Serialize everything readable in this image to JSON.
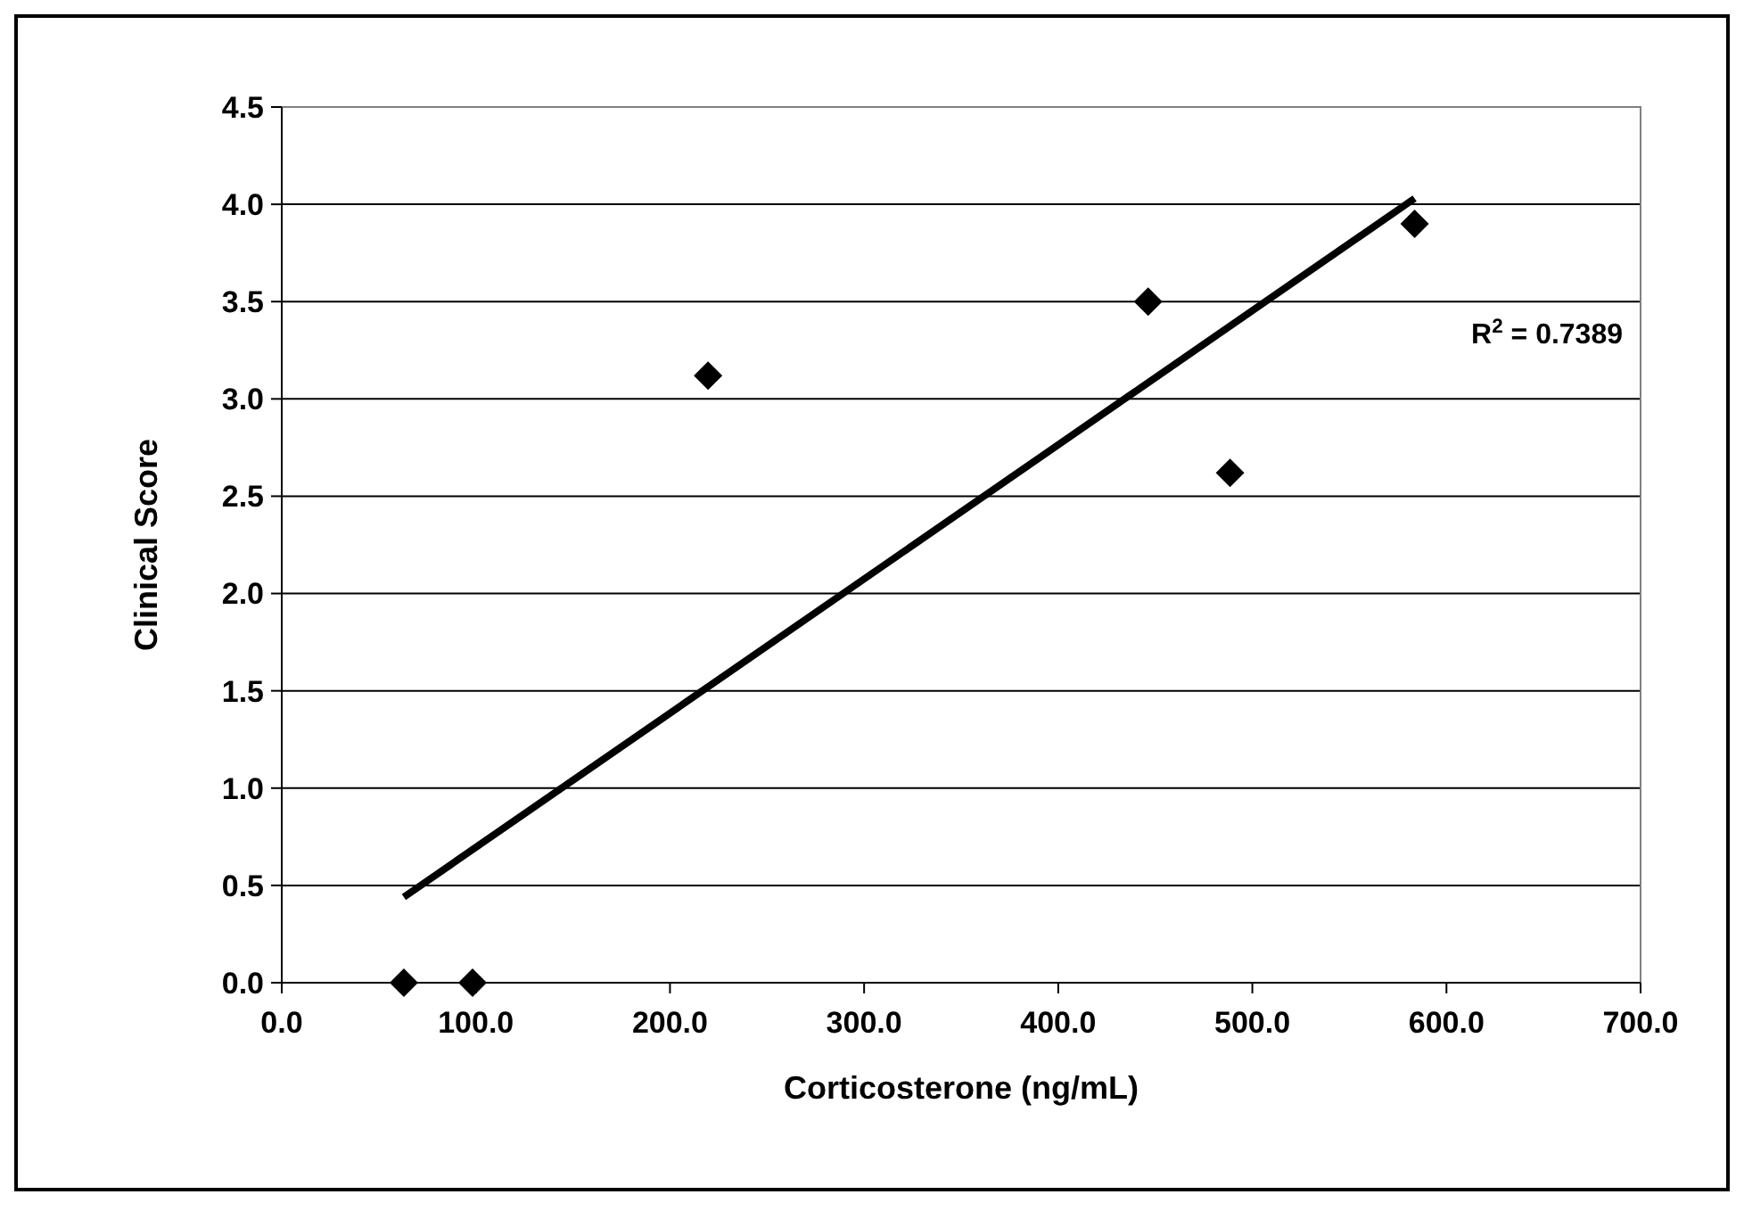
{
  "chart_data": {
    "type": "scatter",
    "xlabel": "Corticosterone (ng/mL)",
    "ylabel": "Clinical Score",
    "xlim": [
      0,
      700
    ],
    "xticks": [
      {
        "value": 0,
        "label": "0.0"
      },
      {
        "value": 100,
        "label": "100.0"
      },
      {
        "value": 200,
        "label": "200.0"
      },
      {
        "value": 300,
        "label": "300.0"
      },
      {
        "value": 400,
        "label": "400.0"
      },
      {
        "value": 500,
        "label": "500.0"
      },
      {
        "value": 600,
        "label": "600.0"
      },
      {
        "value": 700,
        "label": "700.0"
      }
    ],
    "ylim": [
      0,
      4.5
    ],
    "yticks": [
      {
        "value": 0,
        "label": "0.0"
      },
      {
        "value": 0.5,
        "label": "0.5"
      },
      {
        "value": 1,
        "label": "1.0"
      },
      {
        "value": 1.5,
        "label": "1.5"
      },
      {
        "value": 2,
        "label": "2.0"
      },
      {
        "value": 2.5,
        "label": "2.5"
      },
      {
        "value": 3,
        "label": "3.0"
      },
      {
        "value": 3.5,
        "label": "3.5"
      },
      {
        "value": 4,
        "label": "4.0"
      },
      {
        "value": 4.5,
        "label": "4.5"
      }
    ],
    "grid": "y",
    "series": [
      {
        "color": "#000000",
        "marker": "diamond",
        "x": [
          62.9,
          98.3,
          219.6,
          446.3,
          488.5,
          583.6
        ],
        "values": [
          0,
          0,
          3.12,
          3.5,
          2.62,
          3.9
        ]
      },
      {
        "type": "line",
        "color": "#000000",
        "x": [
          62.9,
          583.6
        ],
        "values": [
          0.44,
          4.03
        ]
      }
    ],
    "annotations": [
      "R$^{2}$ = 0.7389"
    ]
  }
}
